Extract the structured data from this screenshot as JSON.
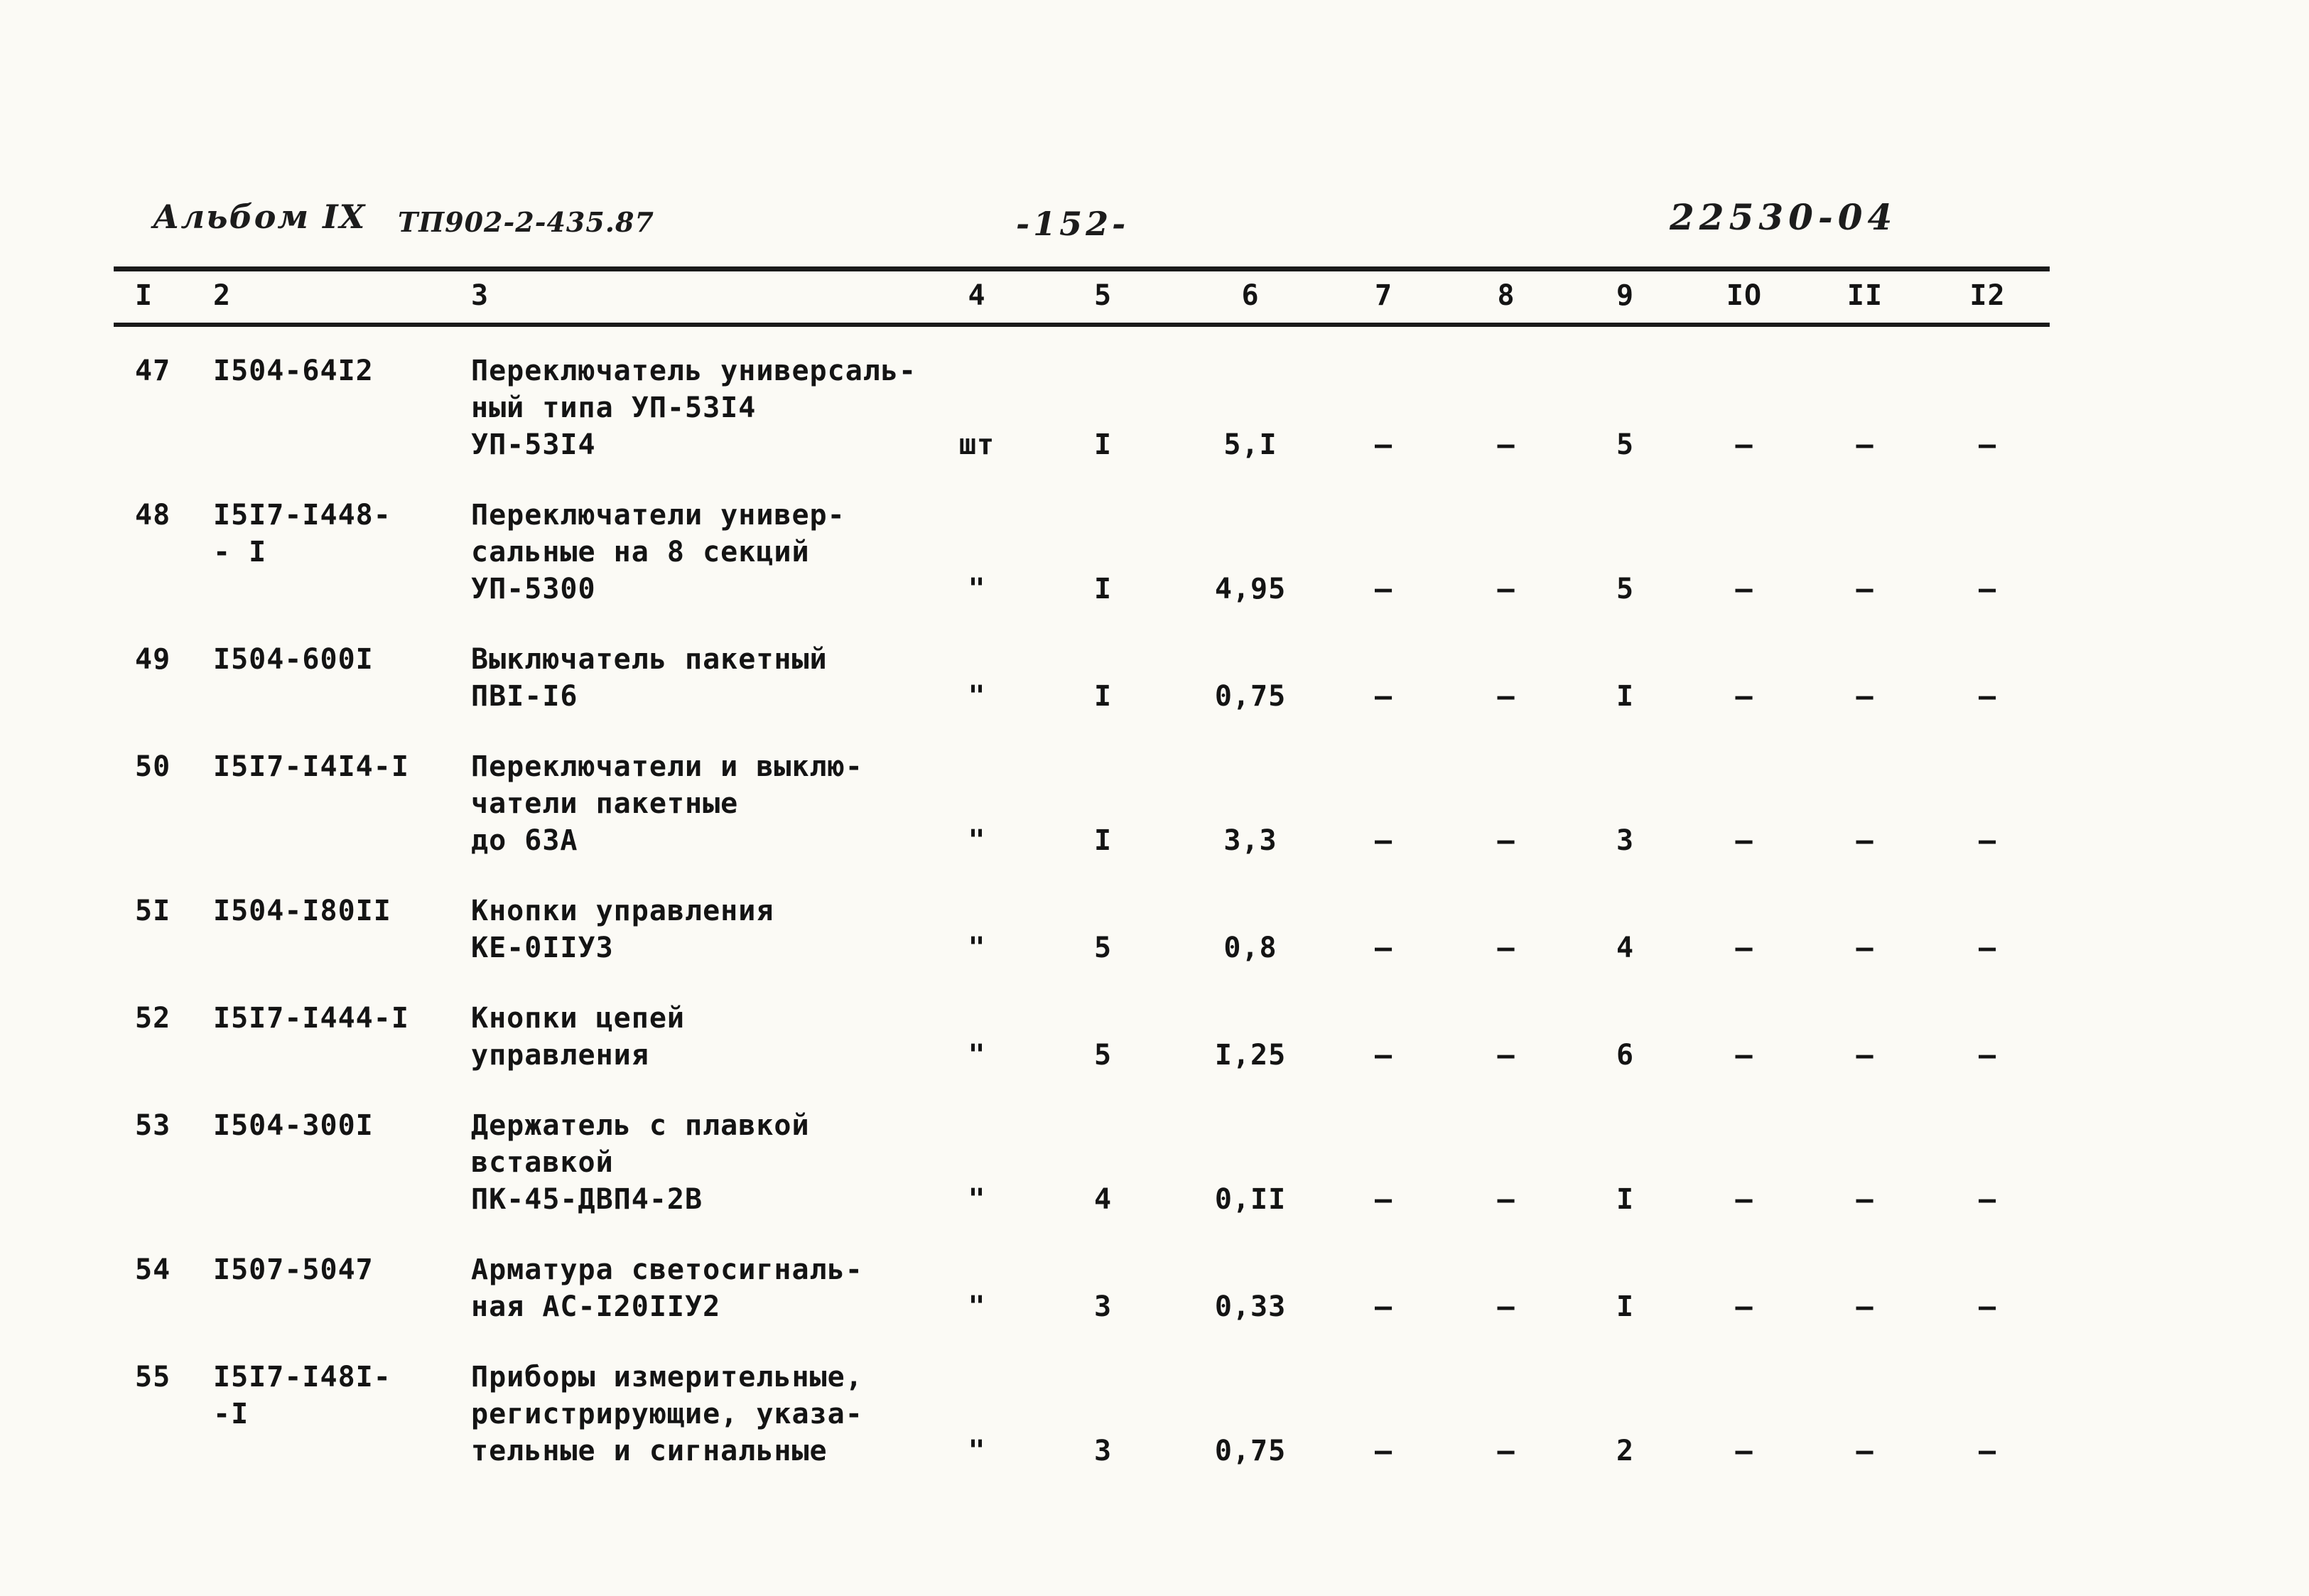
{
  "header": {
    "album": "Альбом IX",
    "project": "ТП902-2-435.87",
    "page_number": "-152-",
    "doc_code": "22530-04"
  },
  "table": {
    "columns": [
      "I",
      "2",
      "3",
      "4",
      "5",
      "6",
      "7",
      "8",
      "9",
      "IO",
      "II",
      "I2"
    ],
    "rows": [
      {
        "num": "47",
        "code_lines": [
          "I504-64I2"
        ],
        "name_lines": [
          "Переключатель универсаль-",
          "ный типа УП-53I4",
          "УП-53I4"
        ],
        "vals": [
          "шт",
          "I",
          "5,I",
          "—",
          "—",
          "5",
          "—",
          "—",
          "—"
        ]
      },
      {
        "num": "48",
        "code_lines": [
          "I5I7-I448-",
          "- I"
        ],
        "name_lines": [
          "Переключатели универ-",
          "сальные на 8 секций",
          "УП-5300"
        ],
        "vals": [
          "\"",
          "I",
          "4,95",
          "—",
          "—",
          "5",
          "—",
          "—",
          "—"
        ]
      },
      {
        "num": "49",
        "code_lines": [
          "I504-600I"
        ],
        "name_lines": [
          "Выключатель пакетный",
          "ПВI-I6"
        ],
        "vals": [
          "\"",
          "I",
          "0,75",
          "—",
          "—",
          "I",
          "—",
          "—",
          "—"
        ]
      },
      {
        "num": "50",
        "code_lines": [
          "I5I7-I4I4-I"
        ],
        "name_lines": [
          "Переключатели и выклю-",
          "чатели пакетные",
          "до 63А"
        ],
        "vals": [
          "\"",
          "I",
          "3,3",
          "—",
          "—",
          "3",
          "—",
          "—",
          "—"
        ]
      },
      {
        "num": "5I",
        "code_lines": [
          "I504-I80II"
        ],
        "name_lines": [
          "Кнопки управления",
          "КЕ-0IIУ3"
        ],
        "vals": [
          "\"",
          "5",
          "0,8",
          "—",
          "—",
          "4",
          "—",
          "—",
          "—"
        ]
      },
      {
        "num": "52",
        "code_lines": [
          "I5I7-I444-I"
        ],
        "name_lines": [
          "Кнопки цепей",
          "управления"
        ],
        "vals": [
          "\"",
          "5",
          "I,25",
          "—",
          "—",
          "6",
          "—",
          "—",
          "—"
        ]
      },
      {
        "num": "53",
        "code_lines": [
          "I504-300I"
        ],
        "name_lines": [
          "Держатель с плавкой",
          "вставкой",
          "ПК-45-ДВП4-2В"
        ],
        "vals": [
          "\"",
          "4",
          "0,II",
          "—",
          "—",
          "I",
          "—",
          "—",
          "—"
        ]
      },
      {
        "num": "54",
        "code_lines": [
          "I507-5047"
        ],
        "name_lines": [
          "Арматура светосигналь-",
          "ная АС-I20IIУ2"
        ],
        "vals": [
          "\"",
          "3",
          "0,33",
          "—",
          "—",
          "I",
          "—",
          "—",
          "—"
        ]
      },
      {
        "num": "55",
        "code_lines": [
          "I5I7-I48I-",
          "-I"
        ],
        "name_lines": [
          "Приборы измерительные,",
          "регистрирующие, указа-",
          "тельные и сигнальные"
        ],
        "vals": [
          "\"",
          "3",
          "0,75",
          "—",
          "—",
          "2",
          "—",
          "—",
          "—"
        ]
      }
    ]
  }
}
